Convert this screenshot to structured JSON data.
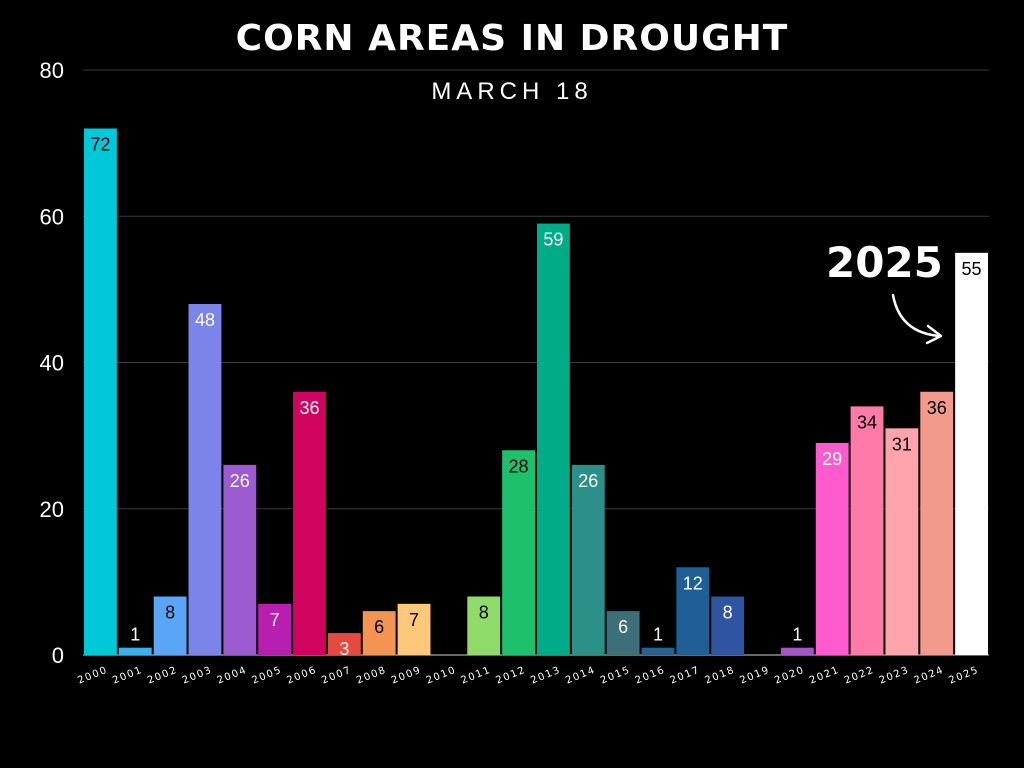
{
  "chart_data": {
    "type": "bar",
    "title": "CORN AREAS IN DROUGHT",
    "subtitle": "MARCH 18",
    "xlabel": "",
    "ylabel": "",
    "ylim": [
      0,
      80
    ],
    "yticks": [
      0,
      20,
      40,
      60,
      80
    ],
    "categories": [
      "2000",
      "2001",
      "2002",
      "2003",
      "2004",
      "2005",
      "2006",
      "2007",
      "2008",
      "2009",
      "2010",
      "2011",
      "2012",
      "2013",
      "2014",
      "2015",
      "2016",
      "2017",
      "2018",
      "2019",
      "2020",
      "2021",
      "2022",
      "2023",
      "2024",
      "2025"
    ],
    "values": [
      72,
      1,
      8,
      48,
      26,
      7,
      36,
      3,
      6,
      7,
      0,
      8,
      28,
      59,
      26,
      6,
      1,
      12,
      8,
      0,
      1,
      29,
      34,
      31,
      36,
      55
    ],
    "data_labels": [
      "72",
      "1",
      "8",
      "48",
      "26",
      "7",
      "36",
      "3",
      "6",
      "7",
      "",
      "8",
      "28",
      "59",
      "26",
      "6",
      "1",
      "12",
      "8",
      "",
      "1",
      "29",
      "34",
      "31",
      "36",
      "55"
    ],
    "colors": [
      "#00c8d8",
      "#3ab0f0",
      "#5aa5f5",
      "#7b84e8",
      "#9c5bd0",
      "#b81fb0",
      "#d0045e",
      "#e24b3e",
      "#f39452",
      "#ffc77a",
      "#000000",
      "#8fdc6a",
      "#1ec06c",
      "#00ab87",
      "#2a9088",
      "#3d6f7a",
      "#28618f",
      "#1f5f96",
      "#2e54a2",
      "#000000",
      "#a455c8",
      "#ff5bcf",
      "#ff7aa9",
      "#ffa3ad",
      "#f29b8c",
      "#ffffff"
    ],
    "label_colors": [
      "#000000",
      "#ffffff",
      "#000000",
      "#ffffff",
      "#ffffff",
      "#ffffff",
      "#ffffff",
      "#ffffff",
      "#000000",
      "#000000",
      "#ffffff",
      "#000000",
      "#000000",
      "#ffffff",
      "#ffffff",
      "#ffffff",
      "#ffffff",
      "#ffffff",
      "#ffffff",
      "#ffffff",
      "#ffffff",
      "#ffffff",
      "#000000",
      "#000000",
      "#000000",
      "#000000"
    ],
    "highlight_label": "2025"
  }
}
